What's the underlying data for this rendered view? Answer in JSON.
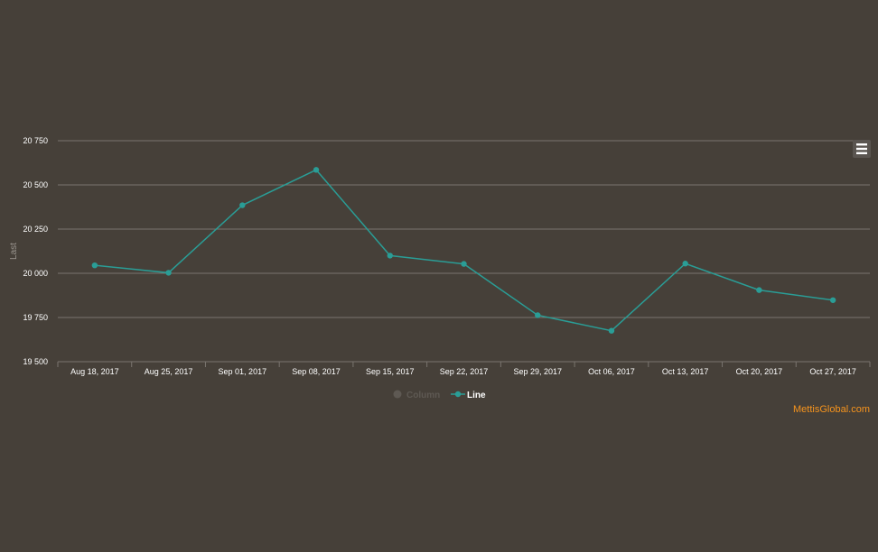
{
  "chart_data": {
    "type": "line",
    "title": "",
    "ylabel": "Last",
    "xlabel": "",
    "ylim": [
      19500,
      20750
    ],
    "yticks": [
      19500,
      19750,
      20000,
      20250,
      20500,
      20750
    ],
    "ytick_labels": [
      "19 500",
      "19 750",
      "20 000",
      "20 250",
      "20 500",
      "20 750"
    ],
    "categories": [
      "Aug 18, 2017",
      "Aug 25, 2017",
      "Sep 01, 2017",
      "Sep 08, 2017",
      "Sep 15, 2017",
      "Sep 22, 2017",
      "Sep 29, 2017",
      "Oct 06, 2017",
      "Oct 13, 2017",
      "Oct 20, 2017",
      "Oct 27, 2017"
    ],
    "series": [
      {
        "name": "Line",
        "color": "#2a9d96",
        "values": [
          20045,
          20003,
          20385,
          20585,
          20100,
          20053,
          19763,
          19675,
          20055,
          19905,
          19848
        ]
      }
    ],
    "legend": {
      "placement": "bottom-center",
      "items": [
        {
          "name": "Column",
          "active": false,
          "color": "#5e5953"
        },
        {
          "name": "Line",
          "active": true,
          "color": "#2a9d96"
        }
      ]
    },
    "grid": true,
    "gridColor": "#7a756f",
    "credits": "MettisGlobal.com",
    "creditsColor": "#f7941d",
    "menuIcon": "hamburger-menu-icon"
  }
}
